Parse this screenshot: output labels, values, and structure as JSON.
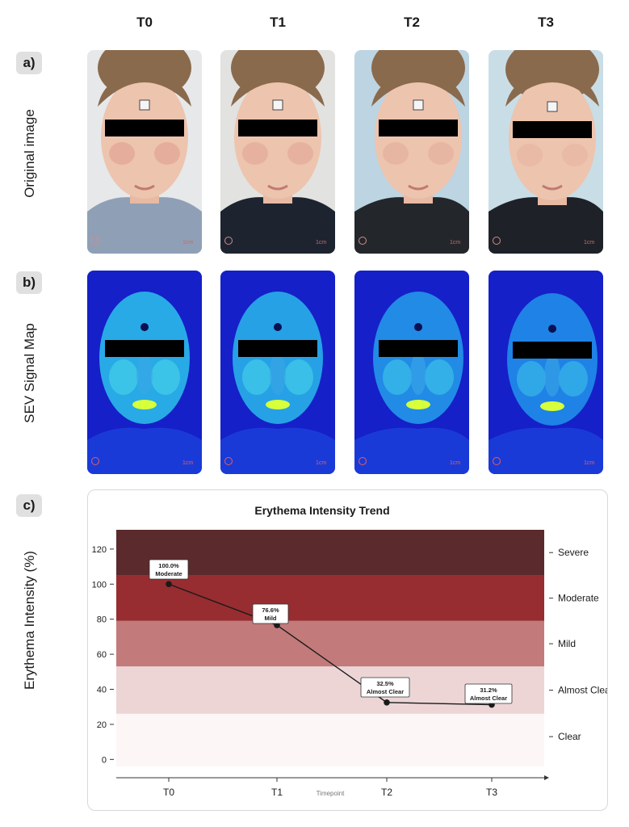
{
  "columns": [
    "T0",
    "T1",
    "T2",
    "T3"
  ],
  "rows": [
    {
      "badge": "a)",
      "label": "Original image"
    },
    {
      "badge": "b)",
      "label": "SEV Signal Map"
    },
    {
      "badge": "c)",
      "label": "Erythema Intensity (%)"
    }
  ],
  "photo_icons": [
    "face-photo-icon",
    "heatmap-photo-icon"
  ],
  "photo_mark": "1cm",
  "chart_data": {
    "type": "line",
    "title": "Erythema Intensity Trend",
    "xlabel": "Timepoint",
    "ylabel": "Erythema Intensity (%)",
    "categories": [
      "T0",
      "T1",
      "T2",
      "T3"
    ],
    "values": [
      100.0,
      76.6,
      32.5,
      31.2
    ],
    "yticks": [
      0,
      20,
      40,
      60,
      80,
      100,
      120
    ],
    "ylim": [
      -4,
      131
    ],
    "grid": false,
    "point_labels": [
      {
        "value": "100.0%",
        "class": "Moderate"
      },
      {
        "value": "76.6%",
        "class": "Mild"
      },
      {
        "value": "32.5%",
        "class": "Almost Clear"
      },
      {
        "value": "31.2%",
        "class": "Almost Clear"
      }
    ],
    "bands": [
      {
        "name": "Severe",
        "from": 105,
        "to": 131,
        "color": "#5b2a2c"
      },
      {
        "name": "Moderate",
        "from": 79,
        "to": 105,
        "color": "#972d30"
      },
      {
        "name": "Mild",
        "from": 53,
        "to": 79,
        "color": "#c27a7b"
      },
      {
        "name": "Almost Clear",
        "from": 26,
        "to": 53,
        "color": "#edd5d6"
      },
      {
        "name": "Clear",
        "from": -4,
        "to": 26,
        "color": "#fdf6f6"
      }
    ],
    "line_color": "#1a1a1a"
  }
}
